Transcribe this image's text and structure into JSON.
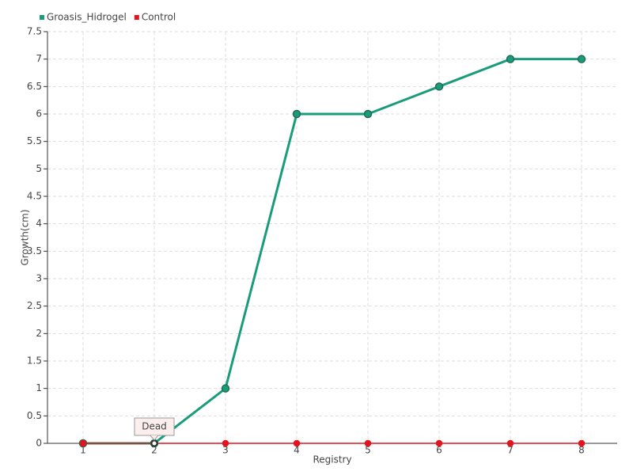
{
  "chart_data": {
    "type": "line",
    "x": [
      1,
      2,
      3,
      4,
      5,
      6,
      7,
      8
    ],
    "series": [
      {
        "name": "Groasis_Hidrogel",
        "color": "#1a9c7b",
        "values": [
          0,
          0,
          1,
          6,
          6,
          6.5,
          7,
          7
        ]
      },
      {
        "name": "Control",
        "color": "#e3141e",
        "values": [
          0,
          0,
          0,
          0,
          0,
          0,
          0,
          0
        ]
      }
    ],
    "xlabel": "Registry",
    "ylabel": "Growth(cm)",
    "xlim": [
      0.5,
      8.5
    ],
    "xticks": [
      1,
      2,
      3,
      4,
      5,
      6,
      7,
      8
    ],
    "ylim": [
      0,
      7.5
    ],
    "yticks": [
      0,
      0.5,
      1,
      1.5,
      2,
      2.5,
      3,
      3.5,
      4,
      4.5,
      5,
      5.5,
      6,
      6.5,
      7,
      7.5
    ],
    "grid": true,
    "legend": "top-left",
    "annotations": [
      {
        "text": "Dead",
        "x": 2,
        "y": 0
      }
    ]
  }
}
